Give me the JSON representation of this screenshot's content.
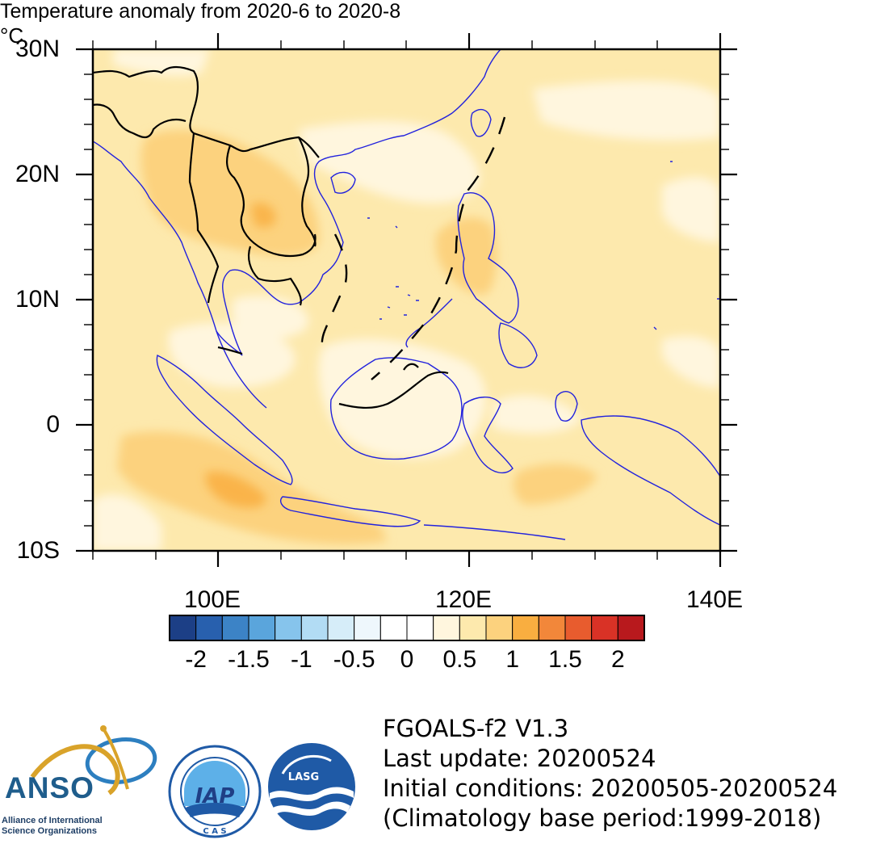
{
  "title": "Temperature anomaly from 2020-6 to 2020-8",
  "unit": "°C",
  "map": {
    "lat_labels": [
      "30N",
      "20N",
      "10N",
      "0",
      "10S"
    ],
    "lon_labels": [
      "100E",
      "120E",
      "140E"
    ],
    "lat_range": [
      -10,
      30
    ],
    "lon_range": [
      90,
      140
    ]
  },
  "colorbar": {
    "labels": [
      "-2",
      "-1.5",
      "-1",
      "-0.5",
      "0",
      "0.5",
      "1",
      "1.5",
      "2"
    ],
    "colors": [
      "#1c3f86",
      "#2860ae",
      "#3c83c6",
      "#5aa5dc",
      "#86c4ec",
      "#b2dcf4",
      "#d6edf9",
      "#eef7fc",
      "#ffffff",
      "#ffffff",
      "#fff6de",
      "#fde9ad",
      "#fcd27e",
      "#f9ae40",
      "#f2873a",
      "#e85c2e",
      "#d93226",
      "#b8191d"
    ]
  },
  "logos": {
    "anso_name": "ANSO",
    "anso_full_line1": "Alliance of International",
    "anso_full_line2": "Science Organizations",
    "iap_name": "IAP",
    "iap_cas": "C A S",
    "lasg_name": "LASG"
  },
  "info": {
    "model": "FGOALS-f2 V1.3",
    "last_update": "Last update: 20200524",
    "initial_conditions": "Initial conditions: 20200505-20200524",
    "climatology": "(Climatology base period:1999-2018)"
  }
}
